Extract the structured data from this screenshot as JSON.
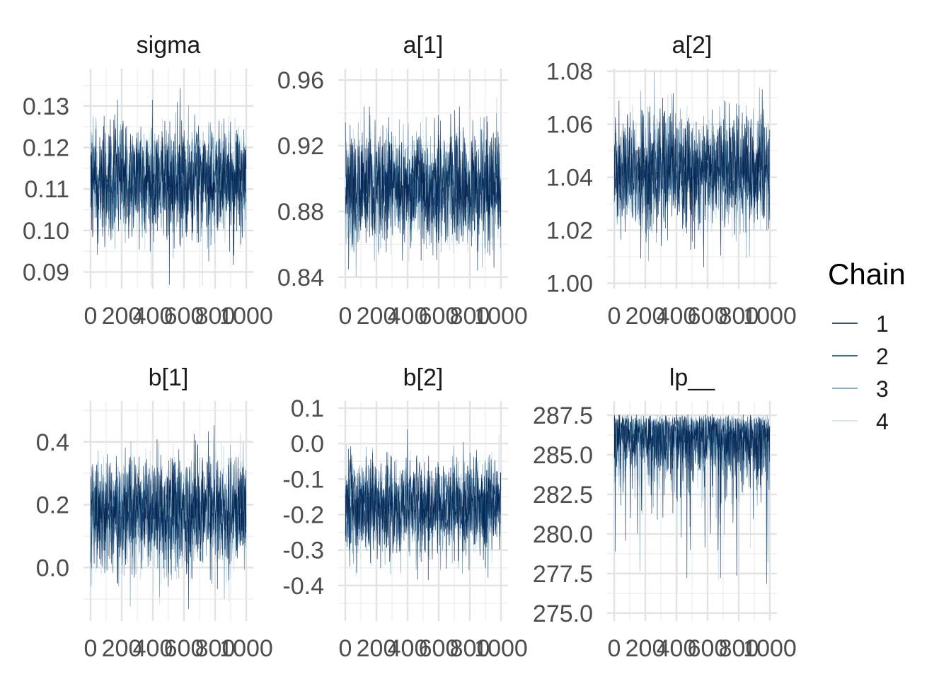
{
  "chart_data": {
    "type": "line",
    "description_type": "trace plots (facets)",
    "legend": {
      "title": "Chain",
      "position": "right",
      "entries": [
        "1",
        "2",
        "3",
        "4"
      ],
      "colors": [
        "#011f4b",
        "#03396c",
        "#6497b1",
        "#d1e1ec"
      ]
    },
    "x_ticks": [
      0,
      200,
      400,
      600,
      800,
      1000
    ],
    "x_tick_labels": [
      "0",
      "200",
      "400",
      "600",
      "800",
      "1000"
    ],
    "xlim": [
      0,
      1000
    ],
    "panels": [
      {
        "title": "sigma",
        "center": 0.112,
        "spread": 0.0065,
        "skew": 0,
        "ylim": [
          0.086,
          0.139
        ],
        "y_ticks": [
          0.09,
          0.1,
          0.11,
          0.12,
          0.13
        ],
        "y_tick_labels": [
          "0.09",
          "0.10",
          "0.11",
          "0.12",
          "0.13"
        ]
      },
      {
        "title": "a[1]",
        "center": 0.895,
        "spread": 0.017,
        "skew": 0,
        "ylim": [
          0.833,
          0.967
        ],
        "y_ticks": [
          0.84,
          0.88,
          0.92,
          0.96
        ],
        "y_tick_labels": [
          "0.84",
          "0.88",
          "0.92",
          "0.96"
        ]
      },
      {
        "title": "a[2]",
        "center": 1.042,
        "spread": 0.0105,
        "skew": 0,
        "ylim": [
          0.998,
          1.081
        ],
        "y_ticks": [
          1.0,
          1.02,
          1.04,
          1.06,
          1.08
        ],
        "y_tick_labels": [
          "1.00",
          "1.02",
          "1.04",
          "1.06",
          "1.08"
        ]
      },
      {
        "title": "b[1]",
        "center": 0.175,
        "spread": 0.085,
        "skew": 0,
        "ylim": [
          -0.17,
          0.53
        ],
        "y_ticks": [
          0.0,
          0.2,
          0.4
        ],
        "y_tick_labels": [
          "0.0",
          "0.2",
          "0.4"
        ]
      },
      {
        "title": "b[2]",
        "center": -0.175,
        "spread": 0.065,
        "skew": 0,
        "ylim": [
          -0.5,
          0.12
        ],
        "y_ticks": [
          -0.4,
          -0.3,
          -0.2,
          -0.1,
          0.0,
          0.1
        ],
        "y_tick_labels": [
          "-0.4",
          "-0.3",
          "-0.2",
          "-0.1",
          "0.0",
          "0.1"
        ]
      },
      {
        "title": "lp__",
        "center": 285.6,
        "spread": 1.5,
        "skew": 1,
        "max": 287.6,
        "ylim": [
          274.5,
          288.4
        ],
        "y_ticks": [
          275.0,
          277.5,
          280.0,
          282.5,
          285.0,
          287.5
        ],
        "y_tick_labels": [
          "275.0",
          "277.5",
          "280.0",
          "282.5",
          "285.0",
          "287.5"
        ]
      }
    ]
  }
}
